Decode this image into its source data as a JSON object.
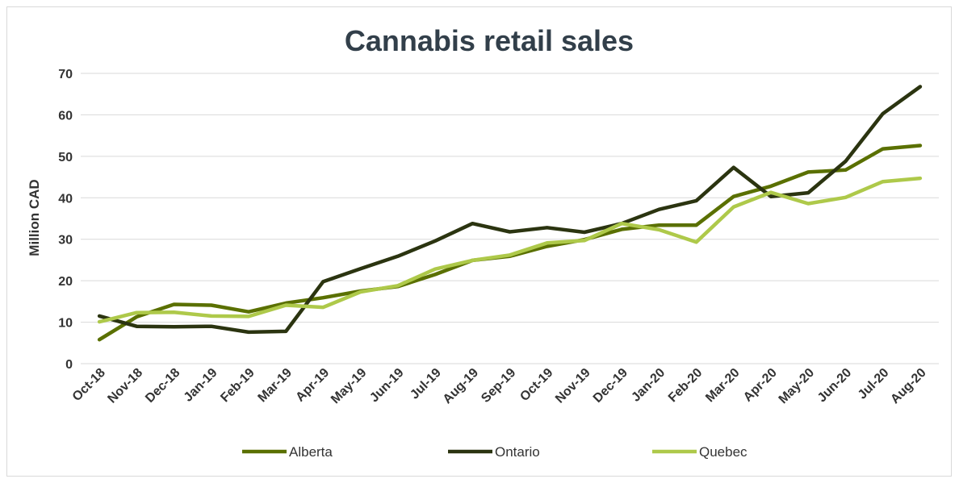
{
  "chart_data": {
    "type": "line",
    "title": "Cannabis retail sales",
    "xlabel": "",
    "ylabel": "Million CAD",
    "ylim": [
      0,
      70
    ],
    "yticks": [
      0,
      10,
      20,
      30,
      40,
      50,
      60,
      70
    ],
    "grid": true,
    "legend_position": "bottom",
    "categories": [
      "Oct-18",
      "Nov-18",
      "Dec-18",
      "Jan-19",
      "Feb-19",
      "Mar-19",
      "Apr-19",
      "May-19",
      "Jun-19",
      "Jul-19",
      "Aug-19",
      "Sep-19",
      "Oct-19",
      "Nov-19",
      "Dec-19",
      "Jan-20",
      "Feb-20",
      "Mar-20",
      "Apr-20",
      "May-20",
      "Jun-20",
      "Jul-20",
      "Aug-20"
    ],
    "series": [
      {
        "name": "Alberta",
        "color": "#5a7000",
        "values": [
          5.8,
          11.3,
          14.3,
          14.1,
          12.5,
          14.6,
          15.9,
          17.5,
          18.6,
          21.5,
          24.9,
          25.9,
          28.3,
          29.9,
          32.4,
          33.4,
          33.4,
          40.3,
          42.8,
          46.2,
          46.7,
          51.8,
          52.6
        ]
      },
      {
        "name": "Ontario",
        "color": "#2b3410",
        "values": [
          11.5,
          9.0,
          8.9,
          9.0,
          7.6,
          7.8,
          19.8,
          22.9,
          25.9,
          29.6,
          33.8,
          31.8,
          32.8,
          31.7,
          33.8,
          37.2,
          39.3,
          47.3,
          40.3,
          41.2,
          48.8,
          60.3,
          66.8
        ]
      },
      {
        "name": "Quebec",
        "color": "#aec94a",
        "values": [
          10.1,
          12.3,
          12.4,
          11.5,
          11.4,
          14.1,
          13.6,
          17.3,
          18.8,
          22.8,
          24.9,
          26.2,
          29.1,
          29.7,
          33.8,
          32.3,
          29.3,
          37.8,
          41.3,
          38.6,
          40.1,
          43.9,
          44.7
        ]
      }
    ]
  }
}
